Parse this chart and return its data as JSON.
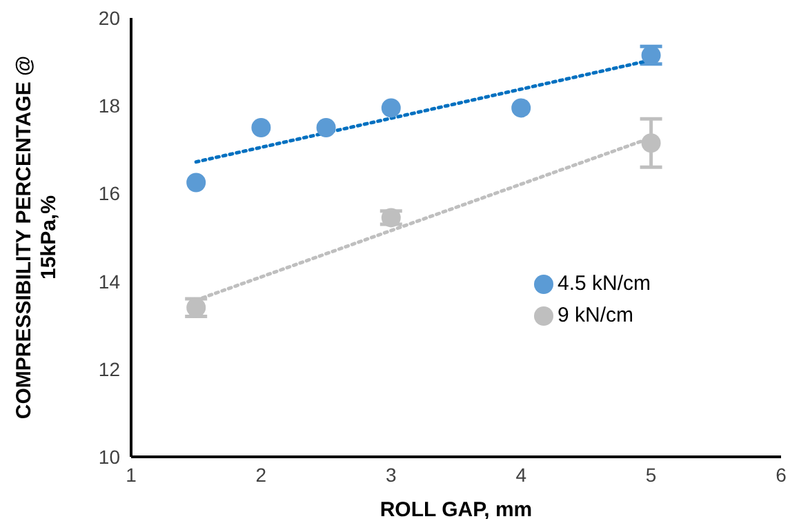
{
  "chart_data": {
    "type": "scatter",
    "xlabel": "ROLL GAP, mm",
    "ylabel": "COMPRESSIBILITY PERCENTAGE @ 15kPa,%",
    "xlim": [
      1,
      6
    ],
    "xticks": [
      1,
      2,
      3,
      4,
      5,
      6
    ],
    "ylim": [
      10,
      20
    ],
    "yticks": [
      10,
      12,
      14,
      16,
      18,
      20
    ],
    "grid": false,
    "legend": "right",
    "marker": "circle",
    "series": [
      {
        "name": "4.5 kN/cm",
        "color": "#5b9bd5",
        "x": [
          1.5,
          2,
          2.5,
          3,
          4,
          5
        ],
        "values": [
          16.25,
          17.5,
          17.5,
          17.95,
          17.95,
          19.15
        ],
        "errors": [
          null,
          null,
          null,
          null,
          null,
          0.2
        ]
      },
      {
        "name": "9 kN/cm",
        "color": "#bfbfbf",
        "x": [
          1.5,
          3,
          5
        ],
        "values": [
          13.4,
          15.45,
          17.15
        ],
        "errors": [
          0.2,
          0.15,
          0.55
        ]
      },
      {
        "type": "line",
        "color": "#0070c0",
        "line_style": "dotted",
        "marker": "none",
        "x": [
          1.5,
          5
        ],
        "values": [
          16.72,
          19.04
        ]
      },
      {
        "type": "line",
        "color": "#bfbfbf",
        "line_style": "dotted",
        "marker": "none",
        "x": [
          1.5,
          5
        ],
        "values": [
          13.57,
          17.27
        ]
      }
    ]
  }
}
